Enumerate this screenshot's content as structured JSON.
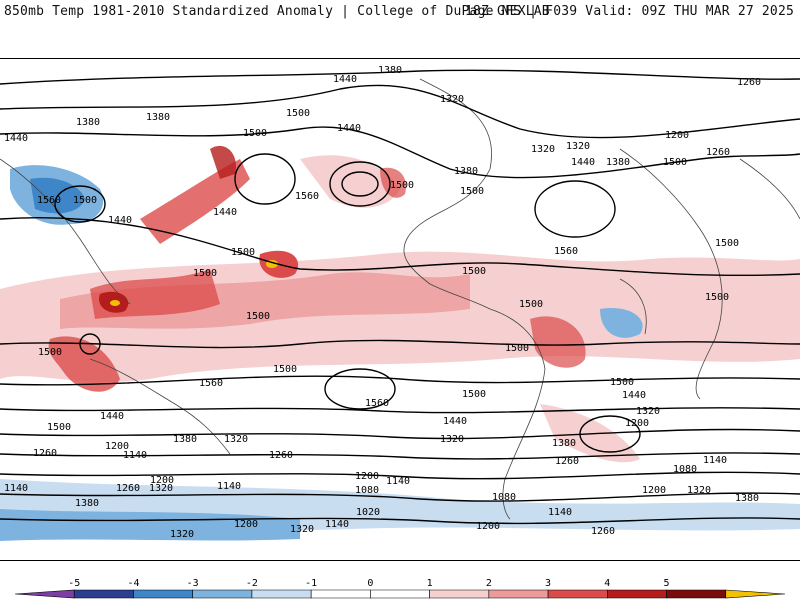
{
  "header": {
    "title_left": "850mb Temp 1981-2010 Standardized Anomaly | College of DuPage NEXLAB",
    "title_right": "18Z GFS | F039 Valid: 09Z THU MAR 27 2025"
  },
  "colors": {
    "neg5": "#7b3fa3",
    "neg4": "#2a3f8f",
    "neg3": "#3f86c9",
    "neg2": "#7fb3df",
    "neg1": "#c9ddf0",
    "zero": "#ffffff",
    "pos1": "#f6d0d0",
    "pos2": "#ec9a9a",
    "pos3": "#dc4b4b",
    "pos4": "#b51d1d",
    "pos5": "#7a0c0c",
    "pos6": "#f2c200"
  },
  "colorbar": {
    "ticks": [
      "-5",
      "-4",
      "-3",
      "-2",
      "-1",
      "0",
      "1",
      "2",
      "3",
      "4",
      "5"
    ]
  },
  "contour_labels": [
    {
      "text": "1380"
    },
    {
      "text": "1440"
    },
    {
      "text": "1260"
    },
    {
      "text": "1320"
    },
    {
      "text": "1500"
    },
    {
      "text": "1560"
    },
    {
      "text": "1200"
    },
    {
      "text": "1140"
    },
    {
      "text": "1080"
    },
    {
      "text": "1020"
    }
  ]
}
